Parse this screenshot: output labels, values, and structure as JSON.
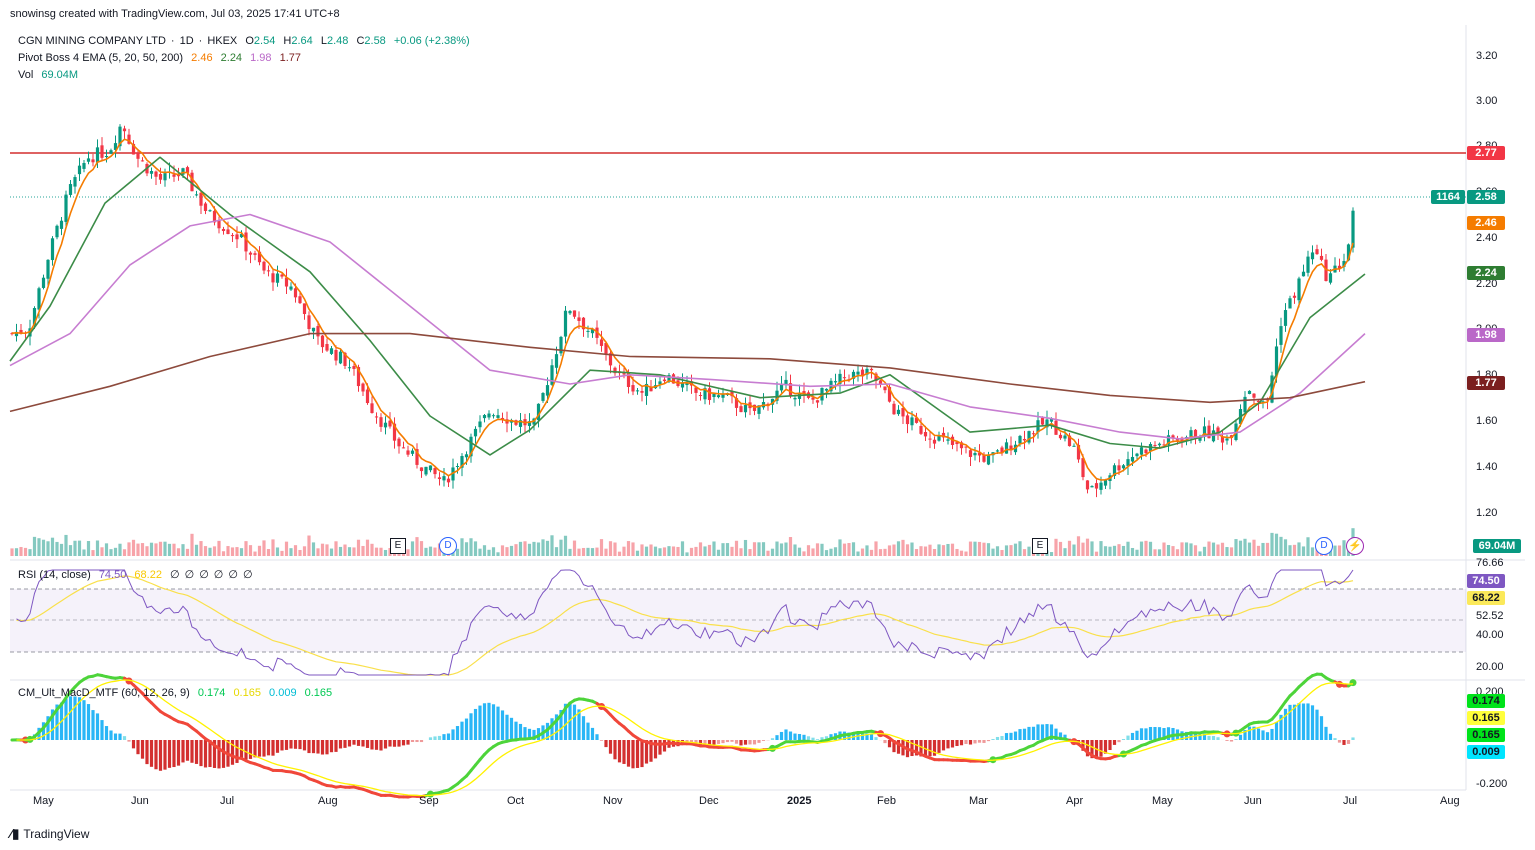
{
  "watermark": "snowinsg created with TradingView.com, Jul 03, 2025 17:41 UTC+8",
  "footer_brand": "TradingView",
  "symbol": {
    "name": "CGN MINING COMPANY LTD",
    "interval": "1D",
    "exchange": "HKEX",
    "separator": "·",
    "open_label": "O",
    "open": "2.54",
    "high_label": "H",
    "high": "2.64",
    "low_label": "L",
    "low": "2.48",
    "close_label": "C",
    "close": "2.58",
    "change": "+0.06 (+2.38%)"
  },
  "ema": {
    "title": "Pivot Boss 4 EMA (5, 20, 50, 200)",
    "values": [
      "2.46",
      "2.24",
      "1.98",
      "1.77"
    ],
    "colors": [
      "#f57c00",
      "#2e7d32",
      "#ba68c8",
      "#7b1f1f"
    ]
  },
  "volume": {
    "title": "Vol",
    "value": "69.04M",
    "tag": "69.04M"
  },
  "rsi": {
    "title": "RSI (14, close)",
    "value": "74.50",
    "ma": "68.22",
    "extra": [
      "∅",
      "∅",
      "∅",
      "∅",
      "∅",
      "∅"
    ],
    "scale": [
      "76.66",
      "52.52",
      "40.00",
      "20.00"
    ],
    "tags": [
      "74.50",
      "68.22"
    ]
  },
  "macd": {
    "title": "CM_Ult_MacD_MTF (60, 12, 26, 9)",
    "values": [
      "0.174",
      "0.165",
      "0.009",
      "0.165"
    ],
    "tags": [
      "0.174",
      "0.165",
      "0.165",
      "0.009"
    ],
    "scale_top": "0.200",
    "scale_bottom": "-0.200"
  },
  "price_tags": {
    "resistance": "2.77",
    "countdown": "1164",
    "last": "2.58",
    "ema5": "2.46",
    "ema20": "2.24",
    "ema50": "1.98",
    "ema200": "1.77"
  },
  "price_scale": [
    "3.20",
    "3.00",
    "2.80",
    "2.60",
    "2.40",
    "2.20",
    "2.00",
    "1.80",
    "1.60",
    "1.40",
    "1.20"
  ],
  "event_markers": [
    "E",
    "D",
    "E",
    "D"
  ],
  "time_axis": [
    "May",
    "Jun",
    "Jul",
    "Aug",
    "Sep",
    "Oct",
    "Nov",
    "Dec",
    "2025",
    "Feb",
    "Mar",
    "Apr",
    "May",
    "Jun",
    "Jul",
    "Aug"
  ],
  "chart_data": {
    "type": "candlestick",
    "title": "CGN MINING COMPANY LTD · 1D · HKEX",
    "ylim": [
      1.1,
      3.3
    ],
    "resistance_line": 2.77,
    "close_path": [
      {
        "t": "2024-04-25",
        "v": 1.98
      },
      {
        "t": "2024-05-01",
        "v": 2.0
      },
      {
        "t": "2024-05-07",
        "v": 2.3
      },
      {
        "t": "2024-05-14",
        "v": 2.6
      },
      {
        "t": "2024-05-20",
        "v": 2.75
      },
      {
        "t": "2024-05-27",
        "v": 2.78
      },
      {
        "t": "2024-05-31",
        "v": 2.9
      },
      {
        "t": "2024-06-05",
        "v": 2.75
      },
      {
        "t": "2024-06-12",
        "v": 2.65
      },
      {
        "t": "2024-06-20",
        "v": 2.68
      },
      {
        "t": "2024-06-28",
        "v": 2.5
      },
      {
        "t": "2024-07-08",
        "v": 2.4
      },
      {
        "t": "2024-07-16",
        "v": 2.25
      },
      {
        "t": "2024-07-25",
        "v": 2.18
      },
      {
        "t": "2024-08-02",
        "v": 1.95
      },
      {
        "t": "2024-08-12",
        "v": 1.85
      },
      {
        "t": "2024-08-20",
        "v": 1.65
      },
      {
        "t": "2024-08-28",
        "v": 1.5
      },
      {
        "t": "2024-09-05",
        "v": 1.4
      },
      {
        "t": "2024-09-12",
        "v": 1.33
      },
      {
        "t": "2024-09-20",
        "v": 1.5
      },
      {
        "t": "2024-09-27",
        "v": 1.65
      },
      {
        "t": "2024-10-04",
        "v": 1.6
      },
      {
        "t": "2024-10-11",
        "v": 1.58
      },
      {
        "t": "2024-10-18",
        "v": 1.9
      },
      {
        "t": "2024-10-22",
        "v": 2.1
      },
      {
        "t": "2024-10-30",
        "v": 1.97
      },
      {
        "t": "2024-11-07",
        "v": 1.8
      },
      {
        "t": "2024-11-15",
        "v": 1.72
      },
      {
        "t": "2024-11-22",
        "v": 1.8
      },
      {
        "t": "2024-12-02",
        "v": 1.72
      },
      {
        "t": "2024-12-12",
        "v": 1.7
      },
      {
        "t": "2024-12-20",
        "v": 1.63
      },
      {
        "t": "2024-12-31",
        "v": 1.75
      },
      {
        "t": "2025-01-08",
        "v": 1.68
      },
      {
        "t": "2025-01-20",
        "v": 1.8
      },
      {
        "t": "2025-01-28",
        "v": 1.8
      },
      {
        "t": "2025-02-05",
        "v": 1.63
      },
      {
        "t": "2025-02-14",
        "v": 1.55
      },
      {
        "t": "2025-02-26",
        "v": 1.47
      },
      {
        "t": "2025-03-07",
        "v": 1.43
      },
      {
        "t": "2025-03-17",
        "v": 1.53
      },
      {
        "t": "2025-03-26",
        "v": 1.6
      },
      {
        "t": "2025-04-03",
        "v": 1.48
      },
      {
        "t": "2025-04-08",
        "v": 1.28
      },
      {
        "t": "2025-04-15",
        "v": 1.38
      },
      {
        "t": "2025-04-24",
        "v": 1.47
      },
      {
        "t": "2025-05-06",
        "v": 1.52
      },
      {
        "t": "2025-05-15",
        "v": 1.55
      },
      {
        "t": "2025-05-23",
        "v": 1.52
      },
      {
        "t": "2025-05-29",
        "v": 1.75
      },
      {
        "t": "2025-06-04",
        "v": 1.65
      },
      {
        "t": "2025-06-09",
        "v": 2.05
      },
      {
        "t": "2025-06-13",
        "v": 2.15
      },
      {
        "t": "2025-06-19",
        "v": 2.35
      },
      {
        "t": "2025-06-24",
        "v": 2.22
      },
      {
        "t": "2025-06-30",
        "v": 2.32
      },
      {
        "t": "2025-07-03",
        "v": 2.58
      }
    ],
    "ema_series": [
      {
        "name": "EMA 20",
        "values": [
          [
            0,
            1.86
          ],
          [
            40,
            2.1
          ],
          [
            95,
            2.55
          ],
          [
            150,
            2.75
          ],
          [
            220,
            2.5
          ],
          [
            300,
            2.25
          ],
          [
            360,
            1.95
          ],
          [
            420,
            1.62
          ],
          [
            480,
            1.45
          ],
          [
            520,
            1.56
          ],
          [
            580,
            1.82
          ],
          [
            650,
            1.8
          ],
          [
            750,
            1.7
          ],
          [
            830,
            1.72
          ],
          [
            880,
            1.8
          ],
          [
            960,
            1.55
          ],
          [
            1040,
            1.58
          ],
          [
            1100,
            1.5
          ],
          [
            1150,
            1.48
          ],
          [
            1210,
            1.55
          ],
          [
            1250,
            1.68
          ],
          [
            1300,
            2.05
          ],
          [
            1355,
            2.24
          ]
        ]
      },
      {
        "name": "EMA 50",
        "values": [
          [
            0,
            1.84
          ],
          [
            60,
            1.98
          ],
          [
            120,
            2.28
          ],
          [
            180,
            2.45
          ],
          [
            240,
            2.5
          ],
          [
            320,
            2.38
          ],
          [
            400,
            2.1
          ],
          [
            480,
            1.82
          ],
          [
            560,
            1.76
          ],
          [
            620,
            1.8
          ],
          [
            700,
            1.78
          ],
          [
            800,
            1.75
          ],
          [
            880,
            1.76
          ],
          [
            960,
            1.66
          ],
          [
            1040,
            1.61
          ],
          [
            1110,
            1.55
          ],
          [
            1170,
            1.52
          ],
          [
            1230,
            1.55
          ],
          [
            1290,
            1.72
          ],
          [
            1355,
            1.98
          ]
        ]
      },
      {
        "name": "EMA 200",
        "values": [
          [
            0,
            1.64
          ],
          [
            100,
            1.75
          ],
          [
            200,
            1.88
          ],
          [
            300,
            1.98
          ],
          [
            400,
            1.98
          ],
          [
            520,
            1.92
          ],
          [
            620,
            1.88
          ],
          [
            760,
            1.87
          ],
          [
            880,
            1.83
          ],
          [
            1000,
            1.76
          ],
          [
            1100,
            1.71
          ],
          [
            1200,
            1.68
          ],
          [
            1280,
            1.7
          ],
          [
            1355,
            1.77
          ]
        ]
      }
    ]
  }
}
